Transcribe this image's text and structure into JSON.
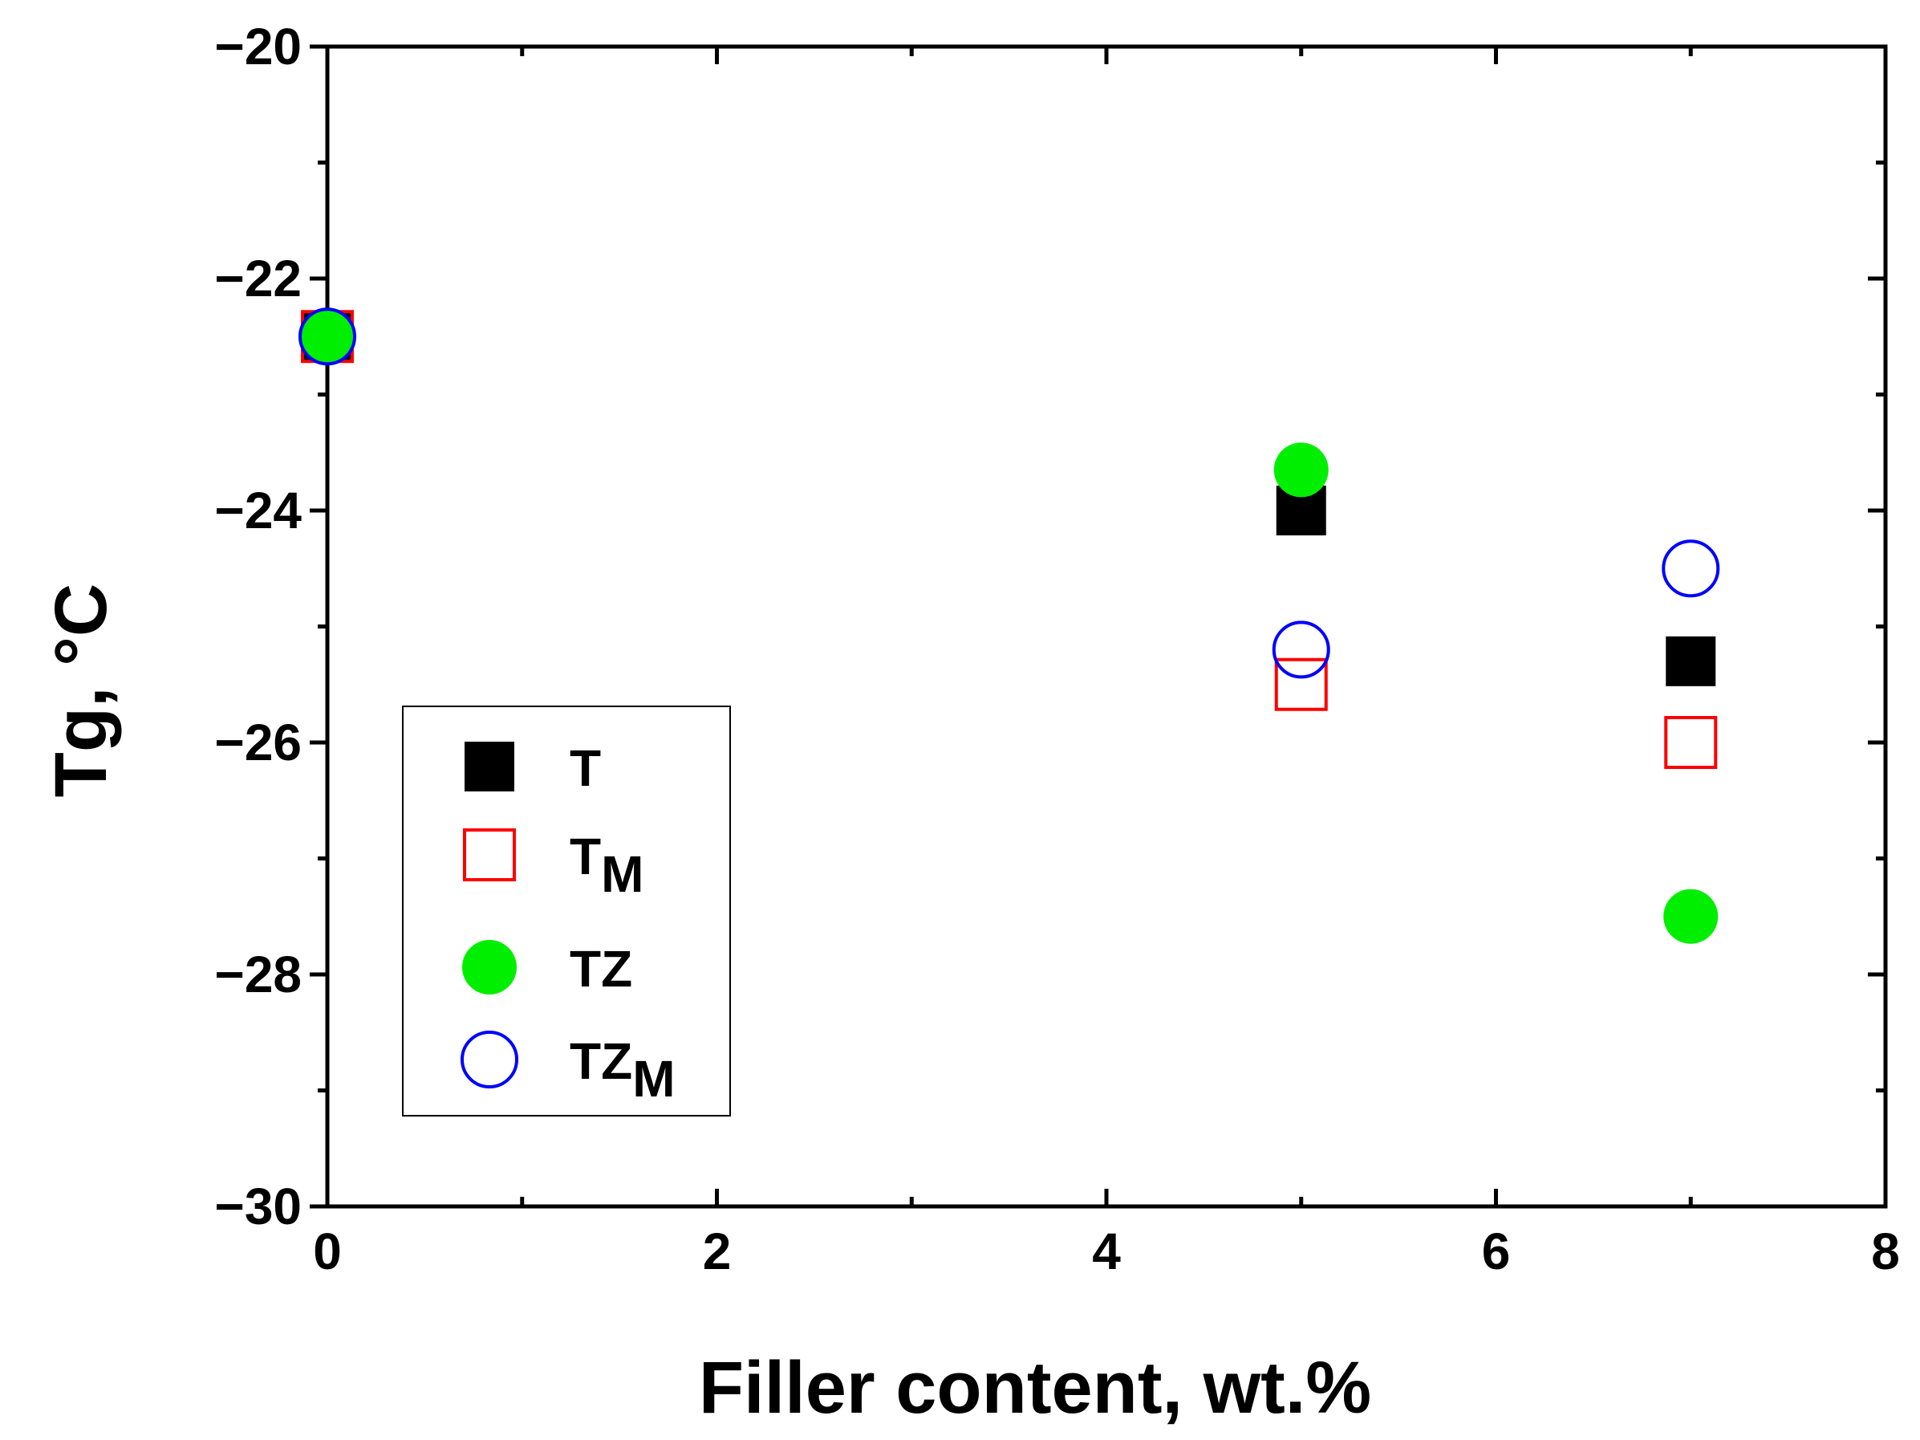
{
  "chart_data": {
    "type": "scatter",
    "title": "",
    "xlabel": "Filler content, wt.%",
    "ylabel": "Tg,  °C",
    "xlim": [
      0,
      8
    ],
    "ylim": [
      -30,
      -20
    ],
    "x_ticks": [
      "0",
      "2",
      "4",
      "6",
      "8"
    ],
    "y_ticks": [
      "−30",
      "−28",
      "−26",
      "−24",
      "−22",
      "−20"
    ],
    "x_tick_values": [
      0,
      2,
      4,
      6,
      8
    ],
    "y_tick_values": [
      -30,
      -28,
      -26,
      -24,
      -22,
      -20
    ],
    "grid": false,
    "legend_position": "bottom-left",
    "series": [
      {
        "name": "T",
        "name_base": "T",
        "name_sub": "",
        "marker": "square",
        "filled": true,
        "color": "#000000",
        "x": [
          0,
          5,
          7
        ],
        "y": [
          -22.5,
          -24.0,
          -25.3
        ]
      },
      {
        "name": "TM",
        "name_base": "T",
        "name_sub": "M",
        "marker": "square",
        "filled": false,
        "color": "#ff0000",
        "x": [
          0,
          5,
          7
        ],
        "y": [
          -22.5,
          -25.5,
          -26.0
        ]
      },
      {
        "name": "TZ",
        "name_base": "TZ",
        "name_sub": "",
        "marker": "circle",
        "filled": true,
        "color": "#00ee00",
        "x": [
          0,
          5,
          7
        ],
        "y": [
          -22.5,
          -23.65,
          -27.5
        ]
      },
      {
        "name": "TZM",
        "name_base": "TZ",
        "name_sub": "M",
        "marker": "circle",
        "filled": false,
        "color": "#0000ff",
        "x": [
          0,
          5,
          7
        ],
        "y": [
          -22.5,
          -25.2,
          -24.5
        ]
      }
    ]
  }
}
